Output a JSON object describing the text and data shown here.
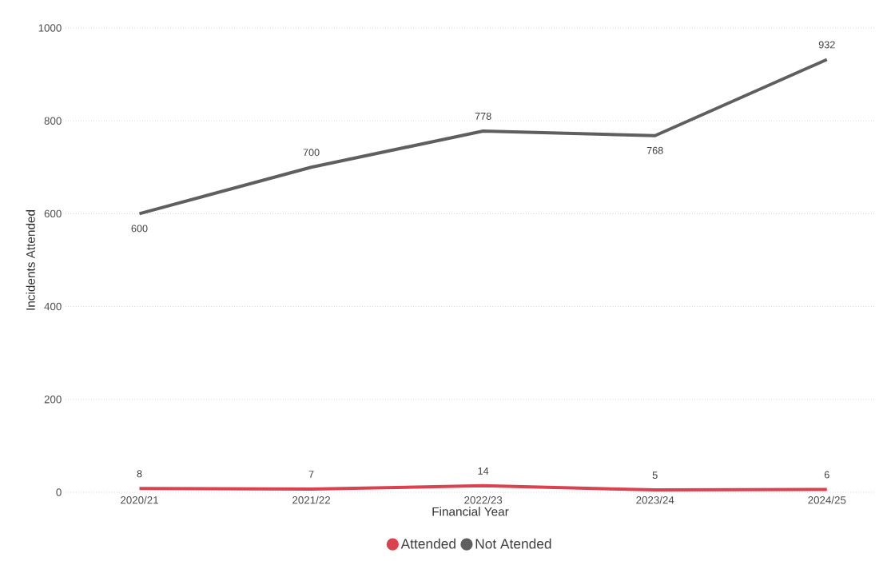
{
  "chart_data": {
    "type": "line",
    "xlabel": "Financial Year",
    "ylabel": "Incidents Attended",
    "categories": [
      "2020/21",
      "2021/22",
      "2022/23",
      "2023/24",
      "2024/25"
    ],
    "series": [
      {
        "name": "Attended",
        "color": "#d9434f",
        "values": [
          8,
          7,
          14,
          5,
          6
        ]
      },
      {
        "name": "Not Atended",
        "color": "#5f5f5f",
        "values": [
          600,
          700,
          778,
          768,
          932
        ]
      }
    ],
    "ylim": [
      0,
      1000
    ],
    "yticks": [
      0,
      200,
      400,
      600,
      800,
      1000
    ],
    "grid": "y",
    "legend": "bottom",
    "data_labels": true,
    "marker": "none",
    "line_style": "solid"
  }
}
